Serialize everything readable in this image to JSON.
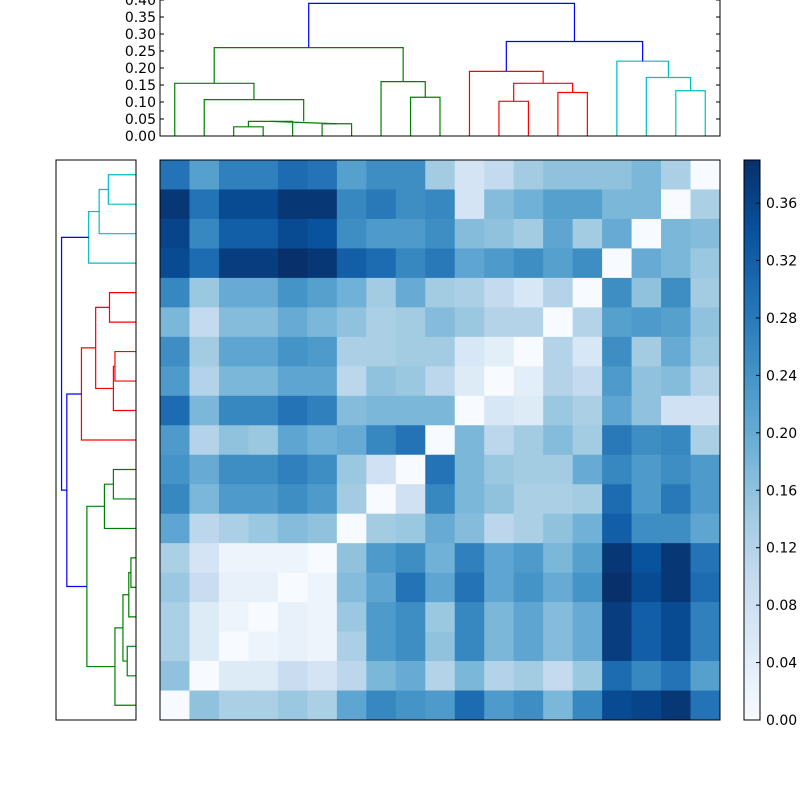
{
  "chart_data": [
    {
      "type": "dendrogram",
      "orientation": "top",
      "ylim": [
        0,
        0.4
      ],
      "yticks": [
        0.0,
        0.05,
        0.1,
        0.15,
        0.2,
        0.25,
        0.3,
        0.35,
        0.4
      ],
      "ytick_labels": [
        "0.00",
        "0.05",
        "0.10",
        "0.15",
        "0.20",
        "0.25",
        "0.30",
        "0.35",
        "0.40"
      ],
      "colors": {
        "blue": "#0000ff",
        "green": "#008000",
        "red": "#ff0000",
        "cyan": "#00bfbf"
      },
      "links": [
        {
          "x": [
            2.5,
            2.5,
            3.5,
            3.5
          ],
          "y": [
            0,
            0.027,
            0.027,
            0
          ],
          "color": "green"
        },
        {
          "x": [
            3.0,
            3.0,
            4.5,
            4.5
          ],
          "y": [
            0.027,
            0.043,
            0.043,
            0
          ],
          "color": "green"
        },
        {
          "x": [
            5.5,
            5.5,
            6.5,
            6.5
          ],
          "y": [
            0,
            0.036,
            0.036,
            0
          ],
          "color": "green"
        },
        {
          "x": [
            3.75,
            3.75,
            6.0,
            6.0
          ],
          "y": [
            0.043,
            0.043,
            0.036,
            0.036
          ],
          "color": "green"
        },
        {
          "x": [
            1.5,
            1.5,
            4.875,
            4.875
          ],
          "y": [
            0,
            0.107,
            0.107,
            0.043
          ],
          "color": "green"
        },
        {
          "x": [
            0.5,
            0.5,
            3.1875,
            3.1875
          ],
          "y": [
            0,
            0.155,
            0.155,
            0.107
          ],
          "color": "green"
        },
        {
          "x": [
            8.5,
            8.5,
            9.5,
            9.5
          ],
          "y": [
            0,
            0.114,
            0.114,
            0
          ],
          "color": "green"
        },
        {
          "x": [
            7.5,
            7.5,
            9.0,
            9.0
          ],
          "y": [
            0,
            0.16,
            0.16,
            0.114
          ],
          "color": "green"
        },
        {
          "x": [
            1.84,
            1.84,
            8.25,
            8.25
          ],
          "y": [
            0.155,
            0.26,
            0.26,
            0.16
          ],
          "color": "green"
        },
        {
          "x": [
            11.5,
            11.5,
            12.5,
            12.5
          ],
          "y": [
            0,
            0.102,
            0.102,
            0
          ],
          "color": "red"
        },
        {
          "x": [
            13.5,
            13.5,
            14.5,
            14.5
          ],
          "y": [
            0,
            0.128,
            0.128,
            0
          ],
          "color": "red"
        },
        {
          "x": [
            12.0,
            12.0,
            14.0,
            14.0
          ],
          "y": [
            0.102,
            0.155,
            0.155,
            0.128
          ],
          "color": "red"
        },
        {
          "x": [
            10.5,
            10.5,
            13.0,
            13.0
          ],
          "y": [
            0,
            0.19,
            0.19,
            0.155
          ],
          "color": "red"
        },
        {
          "x": [
            17.5,
            17.5,
            18.5,
            18.5
          ],
          "y": [
            0,
            0.133,
            0.133,
            0
          ],
          "color": "cyan"
        },
        {
          "x": [
            16.5,
            16.5,
            18.0,
            18.0
          ],
          "y": [
            0,
            0.172,
            0.172,
            0.133
          ],
          "color": "cyan"
        },
        {
          "x": [
            15.5,
            15.5,
            17.25,
            17.25
          ],
          "y": [
            0,
            0.22,
            0.22,
            0.172
          ],
          "color": "cyan"
        },
        {
          "x": [
            11.75,
            11.75,
            16.375,
            16.375
          ],
          "y": [
            0.19,
            0.278,
            0.278,
            0.22
          ],
          "color": "blue"
        },
        {
          "x": [
            5.045,
            5.045,
            14.0625,
            14.0625
          ],
          "y": [
            0.26,
            0.39,
            0.39,
            0.278
          ],
          "color": "blue"
        }
      ]
    },
    {
      "type": "dendrogram",
      "orientation": "left",
      "colors": {
        "blue": "#0000ff",
        "green": "#008000",
        "red": "#ff0000",
        "cyan": "#00bfbf"
      },
      "links": [
        {
          "x": [
            0,
            0.142,
            0.142,
            0
          ],
          "y": [
            0.5,
            0.5,
            1.5,
            1.5
          ],
          "color": "cyan"
        },
        {
          "x": [
            0,
            0.189,
            0.189,
            0.142
          ],
          "y": [
            2.5,
            2.5,
            1.0,
            1.0
          ],
          "color": "cyan"
        },
        {
          "x": [
            0,
            0.243,
            0.243,
            0.189
          ],
          "y": [
            3.5,
            3.5,
            1.75,
            1.75
          ],
          "color": "cyan"
        },
        {
          "x": [
            0,
            0.136,
            0.136,
            0
          ],
          "y": [
            4.5,
            4.5,
            5.5,
            5.5
          ],
          "color": "red"
        },
        {
          "x": [
            0,
            0.108,
            0.108,
            0
          ],
          "y": [
            6.5,
            6.5,
            7.5,
            7.5
          ],
          "color": "red"
        },
        {
          "x": [
            0.108,
            0.116,
            0.116,
            0
          ],
          "y": [
            7.0,
            7.0,
            8.5,
            8.5
          ],
          "color": "red"
        },
        {
          "x": [
            0.136,
            0.207,
            0.207,
            0.116
          ],
          "y": [
            5.0,
            5.0,
            7.75,
            7.75
          ],
          "color": "red"
        },
        {
          "x": [
            0,
            0.28,
            0.28,
            0.207
          ],
          "y": [
            9.5,
            9.5,
            6.375,
            6.375
          ],
          "color": "red"
        },
        {
          "x": [
            0,
            0.116,
            0.116,
            0
          ],
          "y": [
            10.5,
            10.5,
            11.5,
            11.5
          ],
          "color": "green"
        },
        {
          "x": [
            0,
            0.162,
            0.162,
            0.116
          ],
          "y": [
            12.5,
            12.5,
            11.0,
            11.0
          ],
          "color": "green"
        },
        {
          "x": [
            0,
            0.026,
            0.026,
            0
          ],
          "y": [
            13.5,
            13.5,
            14.5,
            14.5
          ],
          "color": "green"
        },
        {
          "x": [
            0,
            0.037,
            0.037,
            0.026
          ],
          "y": [
            15.5,
            15.5,
            14.0,
            14.0
          ],
          "color": "green"
        },
        {
          "x": [
            0,
            0.045,
            0.045,
            0
          ],
          "y": [
            16.5,
            16.5,
            17.5,
            17.5
          ],
          "color": "green"
        },
        {
          "x": [
            0.037,
            0.067,
            0.067,
            0.045
          ],
          "y": [
            14.75,
            14.75,
            17.0,
            17.0
          ],
          "color": "green"
        },
        {
          "x": [
            0,
            0.108,
            0.108,
            0.067
          ],
          "y": [
            18.5,
            18.5,
            15.875,
            15.875
          ],
          "color": "green"
        },
        {
          "x": [
            0.162,
            0.252,
            0.252,
            0.108
          ],
          "y": [
            11.75,
            11.75,
            17.1875,
            17.1875
          ],
          "color": "green"
        },
        {
          "x": [
            0.28,
            0.355,
            0.355,
            0.252
          ],
          "y": [
            7.94,
            7.94,
            14.47,
            14.47
          ],
          "color": "blue"
        },
        {
          "x": [
            0.243,
            0.382,
            0.382,
            0.355
          ],
          "y": [
            2.625,
            2.625,
            11.2,
            11.2
          ],
          "color": "blue"
        }
      ]
    },
    {
      "type": "heatmap",
      "vmin": 0.0,
      "vmax": 0.39,
      "matrix": [
        [
          0.29,
          0.22,
          0.27,
          0.27,
          0.3,
          0.29,
          0.22,
          0.25,
          0.25,
          0.14,
          0.07,
          0.1,
          0.14,
          0.16,
          0.16,
          0.16,
          0.18,
          0.13,
          0.0
        ],
        [
          0.38,
          0.29,
          0.35,
          0.35,
          0.38,
          0.38,
          0.26,
          0.28,
          0.25,
          0.26,
          0.07,
          0.17,
          0.19,
          0.22,
          0.22,
          0.18,
          0.18,
          0.0,
          0.13
        ],
        [
          0.36,
          0.26,
          0.32,
          0.32,
          0.35,
          0.34,
          0.25,
          0.23,
          0.23,
          0.25,
          0.17,
          0.16,
          0.14,
          0.21,
          0.14,
          0.2,
          0.0,
          0.18,
          0.17
        ],
        [
          0.35,
          0.3,
          0.37,
          0.37,
          0.39,
          0.38,
          0.32,
          0.3,
          0.26,
          0.28,
          0.21,
          0.23,
          0.25,
          0.22,
          0.25,
          0.0,
          0.2,
          0.18,
          0.15
        ],
        [
          0.26,
          0.15,
          0.2,
          0.2,
          0.24,
          0.22,
          0.19,
          0.14,
          0.2,
          0.14,
          0.13,
          0.1,
          0.06,
          0.12,
          0.0,
          0.25,
          0.16,
          0.25,
          0.14
        ],
        [
          0.18,
          0.1,
          0.17,
          0.17,
          0.2,
          0.18,
          0.16,
          0.13,
          0.14,
          0.17,
          0.15,
          0.12,
          0.12,
          0.0,
          0.12,
          0.22,
          0.23,
          0.22,
          0.16
        ],
        [
          0.25,
          0.14,
          0.21,
          0.21,
          0.24,
          0.23,
          0.13,
          0.13,
          0.14,
          0.14,
          0.06,
          0.04,
          0.0,
          0.12,
          0.06,
          0.25,
          0.14,
          0.2,
          0.15
        ],
        [
          0.23,
          0.12,
          0.18,
          0.18,
          0.21,
          0.21,
          0.11,
          0.16,
          0.15,
          0.11,
          0.05,
          0.0,
          0.04,
          0.12,
          0.1,
          0.23,
          0.16,
          0.17,
          0.12
        ],
        [
          0.3,
          0.18,
          0.26,
          0.26,
          0.29,
          0.27,
          0.17,
          0.18,
          0.18,
          0.18,
          0.0,
          0.06,
          0.05,
          0.15,
          0.13,
          0.21,
          0.16,
          0.08,
          0.08
        ],
        [
          0.23,
          0.12,
          0.16,
          0.15,
          0.21,
          0.19,
          0.2,
          0.26,
          0.29,
          0.0,
          0.18,
          0.11,
          0.14,
          0.17,
          0.14,
          0.28,
          0.25,
          0.26,
          0.13
        ],
        [
          0.24,
          0.2,
          0.25,
          0.25,
          0.27,
          0.25,
          0.15,
          0.08,
          0.0,
          0.29,
          0.18,
          0.15,
          0.14,
          0.14,
          0.2,
          0.26,
          0.23,
          0.25,
          0.23
        ],
        [
          0.26,
          0.18,
          0.23,
          0.23,
          0.25,
          0.23,
          0.14,
          0.0,
          0.08,
          0.26,
          0.18,
          0.16,
          0.13,
          0.13,
          0.14,
          0.3,
          0.23,
          0.28,
          0.23
        ],
        [
          0.21,
          0.11,
          0.13,
          0.15,
          0.17,
          0.16,
          0.0,
          0.14,
          0.15,
          0.2,
          0.17,
          0.11,
          0.13,
          0.16,
          0.19,
          0.32,
          0.25,
          0.25,
          0.21
        ],
        [
          0.13,
          0.07,
          0.02,
          0.02,
          0.02,
          0.0,
          0.16,
          0.23,
          0.25,
          0.19,
          0.27,
          0.21,
          0.23,
          0.18,
          0.22,
          0.38,
          0.34,
          0.38,
          0.29
        ],
        [
          0.15,
          0.09,
          0.03,
          0.03,
          0.0,
          0.02,
          0.17,
          0.21,
          0.29,
          0.21,
          0.29,
          0.21,
          0.24,
          0.2,
          0.24,
          0.39,
          0.35,
          0.38,
          0.3
        ],
        [
          0.13,
          0.05,
          0.02,
          0.0,
          0.03,
          0.02,
          0.15,
          0.23,
          0.25,
          0.15,
          0.26,
          0.18,
          0.21,
          0.17,
          0.2,
          0.37,
          0.32,
          0.35,
          0.27
        ],
        [
          0.13,
          0.05,
          0.0,
          0.02,
          0.03,
          0.02,
          0.13,
          0.23,
          0.25,
          0.16,
          0.26,
          0.18,
          0.21,
          0.17,
          0.2,
          0.37,
          0.32,
          0.35,
          0.27
        ],
        [
          0.16,
          0.0,
          0.05,
          0.05,
          0.09,
          0.07,
          0.11,
          0.18,
          0.2,
          0.12,
          0.18,
          0.12,
          0.14,
          0.1,
          0.15,
          0.3,
          0.26,
          0.29,
          0.22
        ],
        [
          0.0,
          0.16,
          0.13,
          0.13,
          0.15,
          0.13,
          0.21,
          0.26,
          0.24,
          0.23,
          0.3,
          0.23,
          0.25,
          0.18,
          0.26,
          0.35,
          0.36,
          0.38,
          0.29
        ]
      ]
    },
    {
      "type": "colorbar",
      "range": [
        0.0,
        0.39
      ],
      "ticks": [
        0.0,
        0.04,
        0.08,
        0.12,
        0.16,
        0.2,
        0.24,
        0.28,
        0.32,
        0.36
      ],
      "tick_labels": [
        "0.00",
        "0.04",
        "0.08",
        "0.12",
        "0.16",
        "0.20",
        "0.24",
        "0.28",
        "0.32",
        "0.36"
      ],
      "colormap": "Blues"
    }
  ]
}
